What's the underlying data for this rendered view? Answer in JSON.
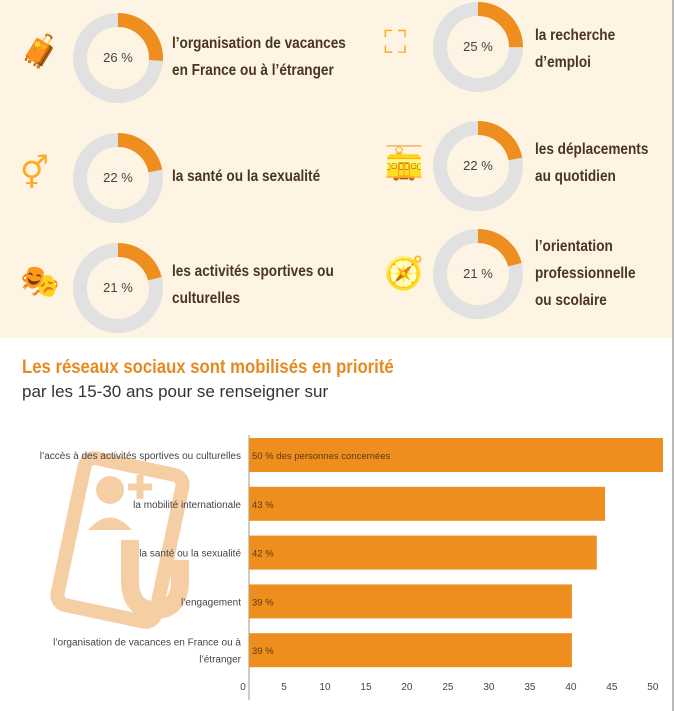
{
  "colors": {
    "accent": "#ee8e1e",
    "track": "#e1e1e1",
    "background": "#fdf4e4"
  },
  "donuts": [
    {
      "value": 26,
      "label": "26 %",
      "lines": [
        "l’organisation de vacances",
        "en France ou à l’étranger"
      ],
      "icon": "suitcase-icon"
    },
    {
      "value": 22,
      "label": "22 %",
      "lines": [
        "la santé ou la sexualité"
      ],
      "icon": "gender-symbols-icon"
    },
    {
      "value": 21,
      "label": "21 %",
      "lines": [
        "les activités sportives ou",
        "culturelles"
      ],
      "icon": "theatre-masks-ball-icon"
    },
    {
      "value": 25,
      "label": "25 %",
      "lines": [
        "la recherche",
        "d’emploi"
      ],
      "icon": "org-chart-icon"
    },
    {
      "value": 22,
      "label": "22 %",
      "lines": [
        "les déplacements",
        "au quotidien"
      ],
      "icon": "tram-icon"
    },
    {
      "value": 21,
      "label": "21 %",
      "lines": [
        "l’orientation",
        "professionnelle",
        "ou scolaire"
      ],
      "icon": "compass-icon"
    }
  ],
  "chart_data": {
    "type": "bar",
    "title": "Les réseaux sociaux sont mobilisés en priorité",
    "subtitle": "par les 15-30 ans pour se renseigner sur",
    "orientation": "horizontal",
    "categories": [
      "l’accès à des activités sportives ou culturelles",
      "la mobilité internationale",
      "la santé ou la sexualité",
      "l’engagement",
      "l’organisation de vacances en France ou à l’étranger"
    ],
    "category_lines": [
      [
        "l’accès à des activités sportives ou culturelles"
      ],
      [
        "la mobilité internationale"
      ],
      [
        "la santé ou la sexualité"
      ],
      [
        "l’engagement"
      ],
      [
        "l’organisation de vacances en France ou à",
        "l’étranger"
      ]
    ],
    "values": [
      50,
      43,
      42,
      39,
      39
    ],
    "data_labels": [
      "50 % des personnes concernées",
      "43 %",
      "42 %",
      "39 %",
      "39 %"
    ],
    "xlim": [
      0,
      50
    ],
    "ticks": [
      "0",
      "5",
      "10",
      "15",
      "20",
      "25",
      "30",
      "35",
      "40",
      "45",
      "50"
    ],
    "grid": false
  }
}
